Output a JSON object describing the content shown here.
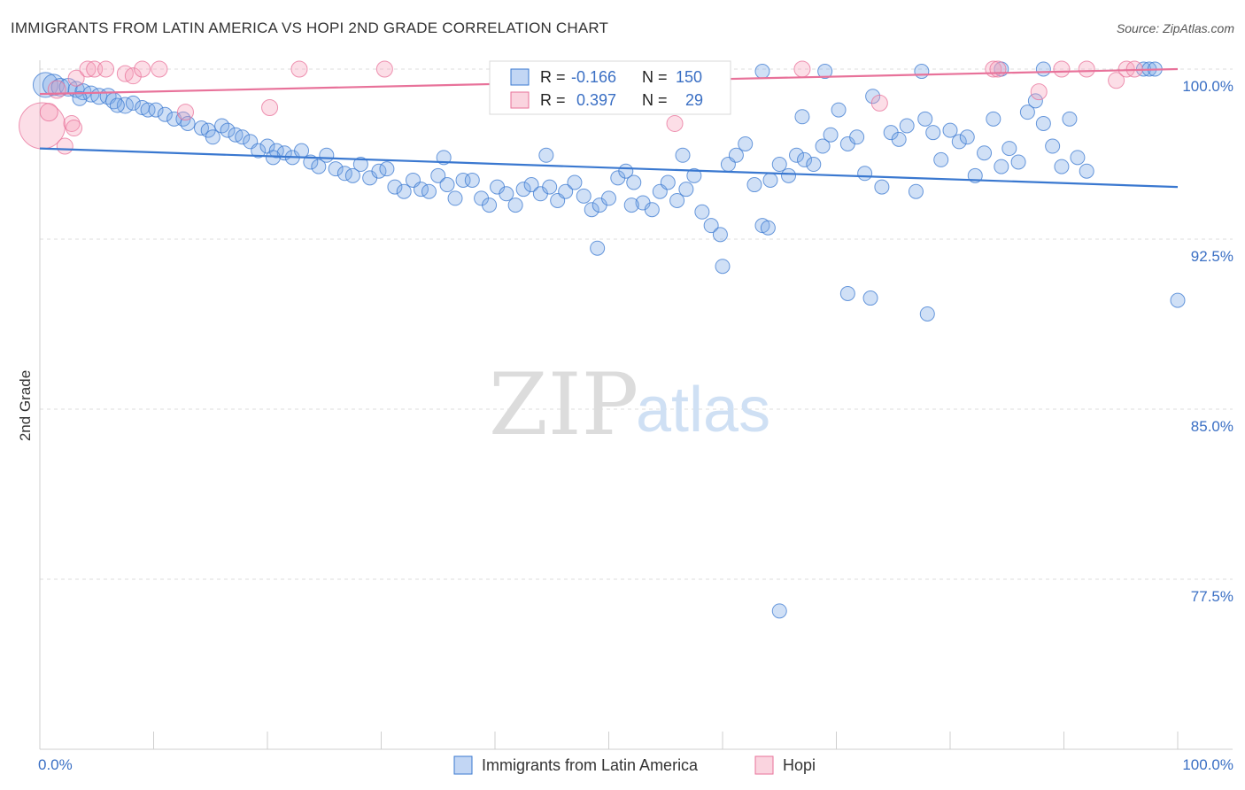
{
  "header": {
    "title": "IMMIGRANTS FROM LATIN AMERICA VS HOPI 2ND GRADE CORRELATION CHART",
    "source": "Source: ZipAtlas.com"
  },
  "watermark": {
    "zip": "ZIP",
    "atlas": "atlas"
  },
  "colors": {
    "blue": "#3a78d0",
    "blue_fill": "rgba(120,165,230,0.35)",
    "pink": "#e8729a",
    "pink_fill": "rgba(245,160,185,0.35)",
    "grid": "#dddddd"
  },
  "chart_data": {
    "type": "scatter",
    "ylabel": "2nd Grade",
    "xlim": [
      0,
      100
    ],
    "ylim": [
      70.7,
      101.5
    ],
    "x_tick_labels": [
      "0.0%",
      "100.0%"
    ],
    "y_ticks": [
      100.0,
      92.5,
      85.0,
      77.5
    ],
    "y_tick_labels": [
      "100.0%",
      "92.5%",
      "85.0%",
      "77.5%"
    ],
    "grid": true,
    "legend_position": "bottom-center",
    "stats": [
      {
        "r_label": "R =",
        "r_value": "-0.166",
        "n_label": "N =",
        "n_value": "150"
      },
      {
        "r_label": "R =",
        "r_value": "0.397",
        "n_label": "N =",
        "n_value": "29"
      }
    ],
    "series": [
      {
        "name": "Immigrants from Latin America",
        "trend": {
          "x": [
            0,
            100
          ],
          "y": [
            96.5,
            94.8
          ]
        },
        "points": [
          [
            0.5,
            99.3,
            14
          ],
          [
            1.2,
            99.3,
            12
          ],
          [
            1.8,
            99.2,
            10
          ],
          [
            2.5,
            99.2,
            10
          ],
          [
            3.2,
            99.1,
            9
          ],
          [
            3.8,
            99.0,
            9
          ],
          [
            4.5,
            98.9,
            9
          ],
          [
            5.2,
            98.8,
            9
          ],
          [
            6.0,
            98.8,
            9
          ],
          [
            6.5,
            98.6,
            9
          ],
          [
            7.5,
            98.4,
            9
          ],
          [
            8.2,
            98.5,
            8
          ],
          [
            9.0,
            98.3,
            8
          ],
          [
            9.5,
            98.2,
            8
          ],
          [
            10.2,
            98.2,
            8
          ],
          [
            11.0,
            98.0,
            8
          ],
          [
            11.8,
            97.8,
            8
          ],
          [
            12.6,
            97.8,
            8
          ],
          [
            13.0,
            97.6,
            8
          ],
          [
            14.2,
            97.4,
            8
          ],
          [
            14.8,
            97.3,
            8
          ],
          [
            15.2,
            97.0,
            8
          ],
          [
            16.0,
            97.5,
            8
          ],
          [
            16.5,
            97.3,
            8
          ],
          [
            17.2,
            97.1,
            8
          ],
          [
            17.8,
            97.0,
            8
          ],
          [
            18.5,
            96.8,
            8
          ],
          [
            19.2,
            96.4,
            8
          ],
          [
            20.0,
            96.6,
            8
          ],
          [
            20.8,
            96.4,
            8
          ],
          [
            21.5,
            96.3,
            8
          ],
          [
            22.2,
            96.1,
            8
          ],
          [
            23.0,
            96.4,
            8
          ],
          [
            23.8,
            95.9,
            8
          ],
          [
            24.5,
            95.7,
            8
          ],
          [
            25.2,
            96.2,
            8
          ],
          [
            26.0,
            95.6,
            8
          ],
          [
            26.8,
            95.4,
            8
          ],
          [
            27.5,
            95.3,
            8
          ],
          [
            28.2,
            95.8,
            8
          ],
          [
            29.0,
            95.2,
            8
          ],
          [
            29.8,
            95.5,
            8
          ],
          [
            30.5,
            95.6,
            8
          ],
          [
            31.2,
            94.8,
            8
          ],
          [
            32.0,
            94.6,
            8
          ],
          [
            32.8,
            95.1,
            8
          ],
          [
            33.5,
            94.7,
            8
          ],
          [
            34.2,
            94.6,
            8
          ],
          [
            35.0,
            95.3,
            8
          ],
          [
            35.8,
            94.9,
            8
          ],
          [
            36.5,
            94.3,
            8
          ],
          [
            37.2,
            95.1,
            8
          ],
          [
            38.0,
            95.1,
            8
          ],
          [
            38.8,
            94.3,
            8
          ],
          [
            39.5,
            94.0,
            8
          ],
          [
            40.2,
            94.8,
            8
          ],
          [
            41.0,
            94.5,
            8
          ],
          [
            41.8,
            94.0,
            8
          ],
          [
            42.5,
            94.7,
            8
          ],
          [
            43.2,
            94.9,
            8
          ],
          [
            44.0,
            94.5,
            8
          ],
          [
            44.8,
            94.8,
            8
          ],
          [
            45.5,
            94.2,
            8
          ],
          [
            46.2,
            94.6,
            8
          ],
          [
            47.0,
            95.0,
            8
          ],
          [
            47.8,
            94.4,
            8
          ],
          [
            48.5,
            93.8,
            8
          ],
          [
            49.2,
            94.0,
            8
          ],
          [
            50.0,
            94.3,
            8
          ],
          [
            50.8,
            95.2,
            8
          ],
          [
            51.5,
            95.5,
            8
          ],
          [
            52.2,
            95.0,
            8
          ],
          [
            53.0,
            94.1,
            8
          ],
          [
            53.8,
            93.8,
            8
          ],
          [
            54.5,
            94.6,
            8
          ],
          [
            55.2,
            95.0,
            8
          ],
          [
            56.0,
            94.2,
            8
          ],
          [
            56.8,
            94.7,
            8
          ],
          [
            57.5,
            95.3,
            8
          ],
          [
            58.2,
            93.7,
            8
          ],
          [
            59.0,
            93.1,
            8
          ],
          [
            59.8,
            92.7,
            8
          ],
          [
            60.5,
            95.8,
            8
          ],
          [
            61.2,
            96.2,
            8
          ],
          [
            62.0,
            96.7,
            8
          ],
          [
            62.8,
            94.9,
            8
          ],
          [
            63.5,
            93.1,
            8
          ],
          [
            64.2,
            95.1,
            8
          ],
          [
            65.0,
            95.8,
            8
          ],
          [
            65.8,
            95.3,
            8
          ],
          [
            66.5,
            96.2,
            8
          ],
          [
            67.2,
            96.0,
            8
          ],
          [
            68.0,
            95.8,
            8
          ],
          [
            68.8,
            96.6,
            8
          ],
          [
            69.5,
            97.1,
            8
          ],
          [
            70.2,
            98.2,
            8
          ],
          [
            71.0,
            96.7,
            8
          ],
          [
            71.8,
            97.0,
            8
          ],
          [
            72.5,
            95.4,
            8
          ],
          [
            73.2,
            98.8,
            8
          ],
          [
            74.0,
            94.8,
            8
          ],
          [
            74.8,
            97.2,
            8
          ],
          [
            75.5,
            96.9,
            8
          ],
          [
            76.2,
            97.5,
            8
          ],
          [
            77.0,
            94.6,
            8
          ],
          [
            77.8,
            97.8,
            8
          ],
          [
            78.5,
            97.2,
            8
          ],
          [
            79.2,
            96.0,
            8
          ],
          [
            80.0,
            97.3,
            8
          ],
          [
            80.8,
            96.8,
            8
          ],
          [
            81.5,
            97.0,
            8
          ],
          [
            82.2,
            95.3,
            8
          ],
          [
            83.0,
            96.3,
            8
          ],
          [
            83.8,
            97.8,
            8
          ],
          [
            84.5,
            95.7,
            8
          ],
          [
            85.2,
            96.5,
            8
          ],
          [
            86.0,
            95.9,
            8
          ],
          [
            86.8,
            98.1,
            8
          ],
          [
            87.5,
            98.6,
            8
          ],
          [
            88.2,
            97.6,
            8
          ],
          [
            89.0,
            96.6,
            8
          ],
          [
            89.8,
            95.7,
            8
          ],
          [
            90.5,
            97.8,
            8
          ],
          [
            91.2,
            96.1,
            8
          ],
          [
            92.0,
            95.5,
            8
          ],
          [
            35.5,
            96.1,
            8
          ],
          [
            44.5,
            96.2,
            8
          ],
          [
            52.0,
            94.0,
            8
          ],
          [
            56.5,
            96.2,
            8
          ],
          [
            60.0,
            91.3,
            8
          ],
          [
            71.0,
            90.1,
            8
          ],
          [
            73.0,
            89.9,
            8
          ],
          [
            49.0,
            92.1,
            8
          ],
          [
            64.0,
            93.0,
            8
          ],
          [
            67.0,
            97.9,
            8
          ],
          [
            58.0,
            99.9,
            8
          ],
          [
            63.5,
            99.9,
            8
          ],
          [
            69.0,
            99.9,
            8
          ],
          [
            77.5,
            99.9,
            8
          ],
          [
            84.5,
            100.0,
            8
          ],
          [
            88.2,
            100.0,
            8
          ],
          [
            97.0,
            100.0,
            8
          ],
          [
            97.5,
            100.0,
            8
          ],
          [
            98.0,
            100.0,
            8
          ],
          [
            100.0,
            89.8,
            8
          ],
          [
            78.0,
            89.2,
            8
          ],
          [
            65.0,
            76.1,
            8
          ],
          [
            20.5,
            96.1,
            8
          ],
          [
            6.8,
            98.4,
            8
          ],
          [
            3.5,
            98.7,
            8
          ]
        ]
      },
      {
        "name": "Hopi",
        "trend": {
          "x": [
            0,
            100
          ],
          "y": [
            98.9,
            100.0
          ]
        },
        "points": [
          [
            0.2,
            97.5,
            26
          ],
          [
            0.8,
            98.1,
            10
          ],
          [
            1.5,
            99.1,
            10
          ],
          [
            2.2,
            96.6,
            9
          ],
          [
            2.8,
            97.6,
            9
          ],
          [
            3.2,
            99.6,
            9
          ],
          [
            4.2,
            100.0,
            9
          ],
          [
            4.8,
            100.0,
            9
          ],
          [
            5.8,
            100.0,
            9
          ],
          [
            7.5,
            99.8,
            9
          ],
          [
            8.2,
            99.7,
            9
          ],
          [
            9.0,
            100.0,
            9
          ],
          [
            10.5,
            100.0,
            9
          ],
          [
            12.8,
            98.1,
            9
          ],
          [
            20.2,
            98.3,
            9
          ],
          [
            22.8,
            100.0,
            9
          ],
          [
            30.3,
            100.0,
            9
          ],
          [
            55.8,
            97.6,
            9
          ],
          [
            67.0,
            100.0,
            9
          ],
          [
            73.8,
            98.5,
            9
          ],
          [
            83.8,
            100.0,
            9
          ],
          [
            84.2,
            100.0,
            9
          ],
          [
            87.8,
            99.0,
            9
          ],
          [
            89.8,
            100.0,
            9
          ],
          [
            92.0,
            100.0,
            9
          ],
          [
            94.6,
            99.5,
            9
          ],
          [
            95.5,
            100.0,
            9
          ],
          [
            96.2,
            100.0,
            9
          ],
          [
            3.0,
            97.4,
            9
          ]
        ]
      }
    ]
  }
}
